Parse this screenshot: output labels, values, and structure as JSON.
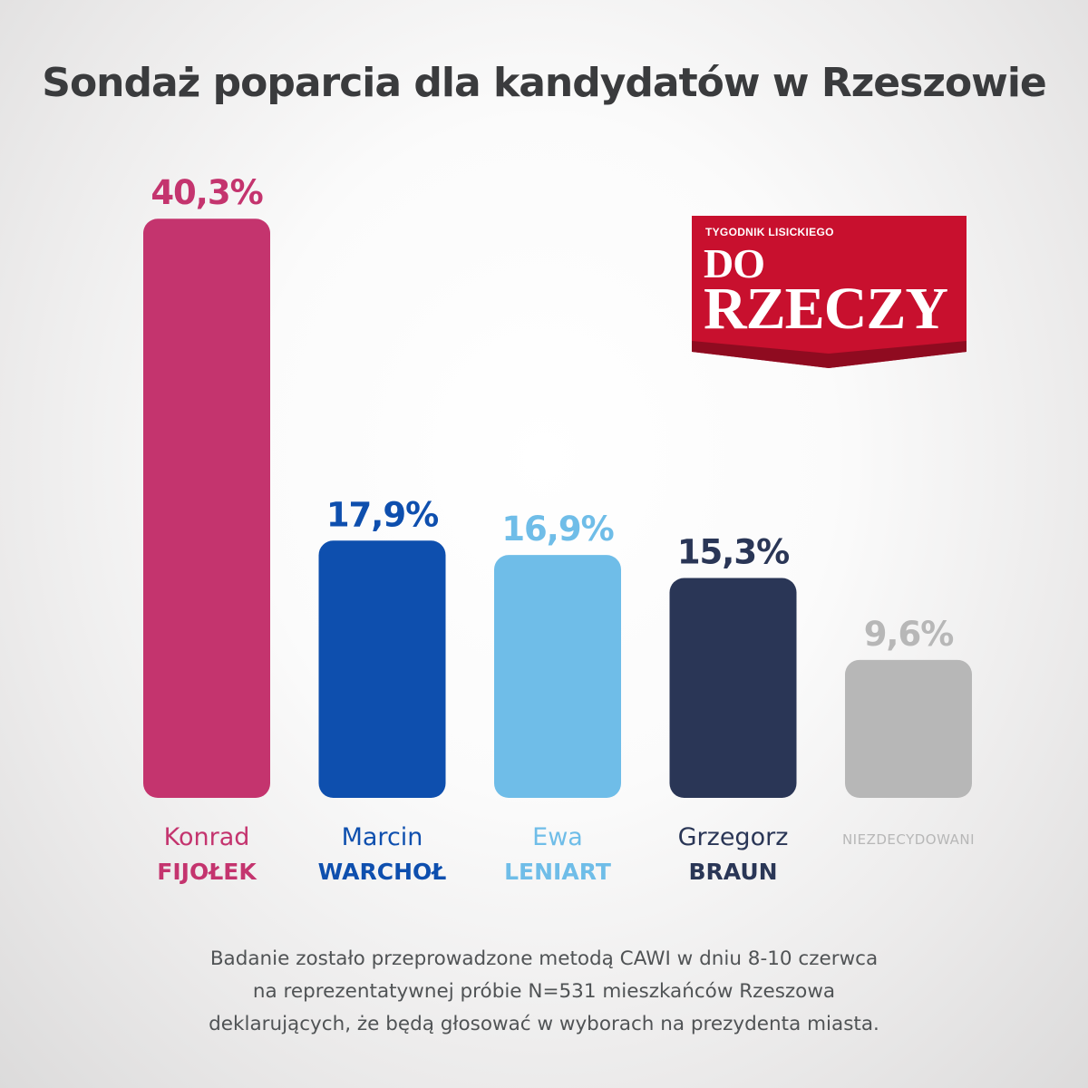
{
  "title": "Sondaż poparcia dla kandydatów w Rzeszowie",
  "logo": {
    "tagline": "TYGODNIK LISICKIEGO",
    "word1": "DO",
    "word2": "RZECZY",
    "color": "#c8102e"
  },
  "footnote": [
    "Badanie zostało przeprowadzone metodą CAWI w dniu 8-10 czerwca",
    "na reprezentatywnej próbie N=531 mieszkańców Rzeszowa",
    "deklarujących, że będą głosować w wyborach na prezydenta miasta."
  ],
  "chart_data": {
    "type": "bar",
    "unit": "%",
    "grid": false,
    "legend": "none",
    "categories": [
      {
        "first": "Konrad",
        "last": "FIJOŁEK",
        "label": "",
        "value_label": "40,3%",
        "color": "#c4346e"
      },
      {
        "first": "Marcin",
        "last": "WARCHOŁ",
        "label": "",
        "value_label": "17,9%",
        "color": "#0e4fae"
      },
      {
        "first": "Ewa",
        "last": "LENIART",
        "label": "",
        "value_label": "16,9%",
        "color": "#6fbde8"
      },
      {
        "first": "Grzegorz",
        "last": "BRAUN",
        "label": "",
        "value_label": "15,3%",
        "color": "#2a3656"
      },
      {
        "first": "",
        "last": "",
        "label": "NIEZDECYDOWANI",
        "value_label": "9,6%",
        "color": "#b7b7b7"
      }
    ],
    "values": [
      40.3,
      17.9,
      16.9,
      15.3,
      9.6
    ],
    "label_colors": [
      "#c4346e",
      "#0e4fae",
      "#6fbde8",
      "#2a3656",
      "#b7b7b7"
    ]
  }
}
